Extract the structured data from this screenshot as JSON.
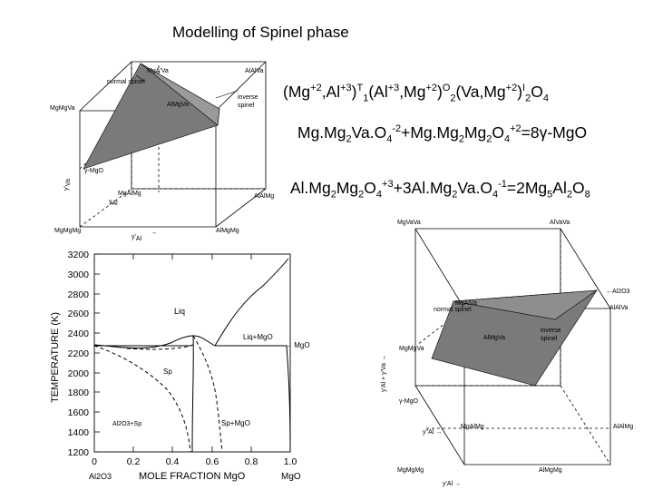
{
  "title": "Modelling of Spinel phase",
  "equations": {
    "formula": {
      "a": "(Mg",
      "b": "+2",
      "c": ",Al",
      "d": "+3",
      "e": ")",
      "f": "T",
      "g": "1",
      "h": "(Al",
      "i": "+3",
      "j": ",Mg",
      "k": "+2",
      "l": ")",
      "m": "O",
      "n": "2",
      "o": "(Va,Mg",
      "p": "+2",
      "q": ")",
      "r": "I",
      "s": "2",
      "t": "O",
      "u": "4"
    },
    "eq1": {
      "a": "Mg.Mg",
      "b": "2",
      "c": "Va.O",
      "d": "4",
      "e": "-2",
      "f": "+Mg.Mg",
      "g": "2",
      "h": "Mg",
      "i": "2",
      "j": "O",
      "k": "4",
      "l": "+2",
      "m": "=8γ-MgO"
    },
    "eq2": {
      "a": "Al.Mg",
      "b": "2",
      "c": "Mg",
      "d": "2",
      "e": "O",
      "f": "4",
      "g": "+3",
      "h": "+3Al.Mg",
      "i": "2",
      "j": "Va.O",
      "k": "4",
      "l": "-1",
      "m": "=2Mg",
      "n": "5",
      "o": "Al",
      "p": "2",
      "q": "O",
      "r": "8"
    }
  },
  "top_cube": {
    "corners": {
      "mgva_top": "MgA'Va",
      "alalva": "AlAlVa",
      "mgmgva": "MgMgVa",
      "mgalmg": "MgAlMg",
      "alalmg": "AlAlMg",
      "mgmgmg": "MgMgMg",
      "almgva": "AlMgVa",
      "almgmg": "AlMgMg"
    },
    "labels": {
      "normal_spinel": "normal spinel",
      "inverse_spinel_1": "inverse",
      "inverse_spinel_2": "spinel",
      "gamma_mgo": "γ-MgO",
      "y_axis": "y'",
      "y_axis_sub": "Va",
      "x_axis": "y'",
      "x_axis_sub": "Al",
      "z_axis": "y",
      "z_axis_sub": "Al",
      "arrow": "→"
    }
  },
  "phase_diagram": {
    "ylabel": "TEMPERATURE (K)",
    "xlabel": "MOLE FRACTION MgO",
    "y_ticks": [
      "1200",
      "1400",
      "1600",
      "1800",
      "2000",
      "2200",
      "2400",
      "2600",
      "2800",
      "3000",
      "3200"
    ],
    "x_ticks": [
      "0",
      "0.2",
      "0.4",
      "0.6",
      "0.8",
      "1.0"
    ],
    "x_left_comp": "Al2O3",
    "x_right_comp": "MgO",
    "regions": {
      "liq": "Liq",
      "liq_mgo": "Liq+MgO",
      "mgo_arrow": "← MgO",
      "sp": "Sp",
      "al2o3_sp": "Al2O3+Sp",
      "sp_mgo": "Sp+MgO"
    }
  },
  "bottom_cube": {
    "corners": {
      "mgvava": "MgVaVa",
      "alvava": "AlVaVa",
      "mgalva": "MgAlVa",
      "alalva": "AlAlVa",
      "mgmgva": "MgMgVa",
      "almgva": "AlMgVa",
      "mgalmg": "MgAlMg",
      "alalmg": "AlAlMg",
      "mgmgmg": "MgMgMg",
      "almgmg": "AlMgMg"
    },
    "labels": {
      "normal_spinel": "normal spinel",
      "inverse_spinel_1": "inverse",
      "inverse_spinel_2": "spinel",
      "gamma_mgo": "γ-MgO",
      "al2o3": "←Al2O3",
      "y_axis": "y'Al + y'Va →",
      "x_axis": "y'Al →",
      "z_axis": "y''Al →"
    }
  }
}
